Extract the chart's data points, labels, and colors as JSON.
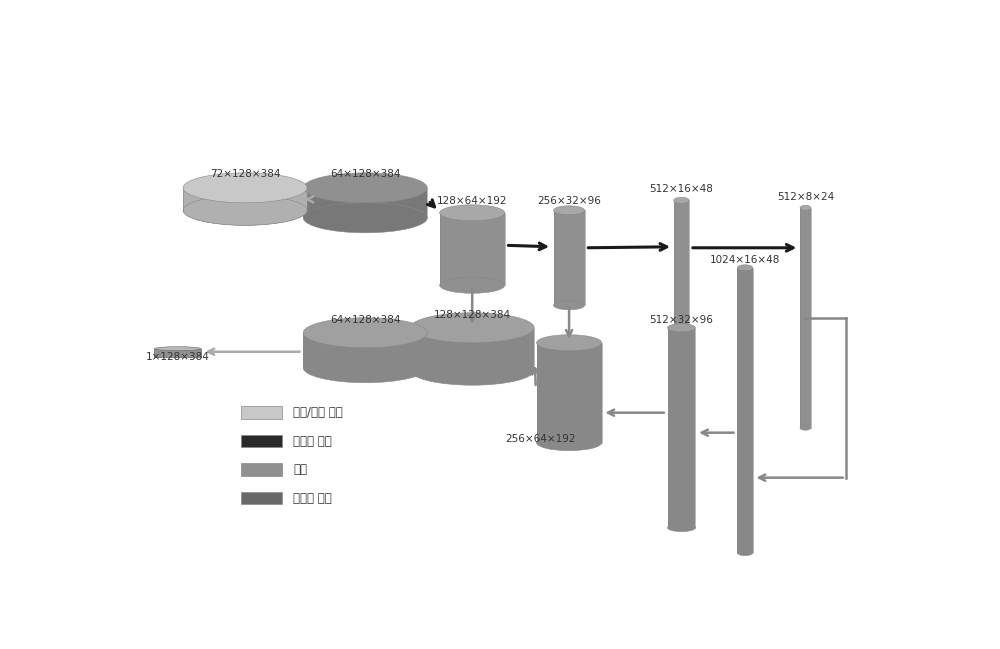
{
  "bg_color": "#ffffff",
  "fig_width": 10.0,
  "fig_height": 6.49,
  "colors": {
    "c_light": "#c8c8c8",
    "c_light_side": "#aaaaaa",
    "c_enc": "#909090",
    "c_enc_side": "#787878",
    "c_enc_top": "#a8a8a8",
    "c_dec": "#888888",
    "c_dec_side": "#707070",
    "c_dec_top": "#a0a0a0",
    "c_tall": "#888888",
    "c_tall_side": "#6a6a6a",
    "edge": "#888888",
    "arrow_dark": "#1a1a1a",
    "arrow_mid": "#888888",
    "arrow_light": "#aaaaaa"
  },
  "legend": [
    {
      "color": "#c8c8c8",
      "label": "输入/输出 卷积"
    },
    {
      "color": "#2a2a2a",
      "label": "下采样 卷积"
    },
    {
      "color": "#909090",
      "label": "连接"
    },
    {
      "color": "#686868",
      "label": "上采样 卷积"
    }
  ]
}
